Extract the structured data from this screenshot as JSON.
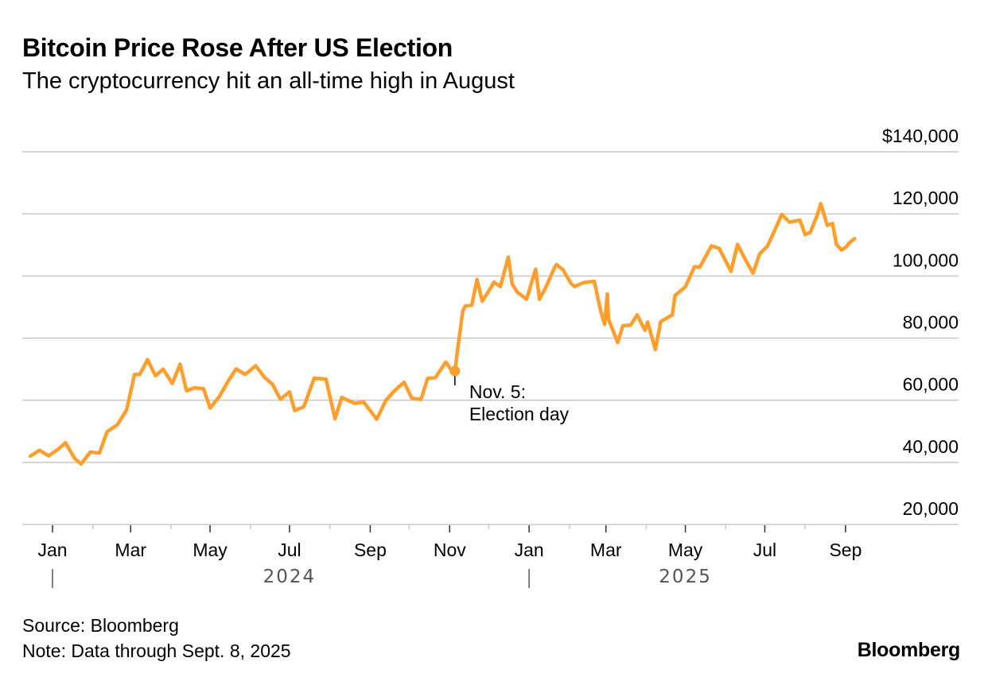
{
  "title": "Bitcoin Price Rose After US Election",
  "subtitle": "The cryptocurrency hit an all-time high in August",
  "footer": {
    "source": "Source: Bloomberg",
    "note": "Note: Data through Sept. 8, 2025",
    "logo": "Bloomberg"
  },
  "chart_data": {
    "type": "line",
    "title": "Bitcoin Price Rose After US Election",
    "subtitle": "The cryptocurrency hit an all-time high in August",
    "xlabel": "",
    "ylabel": "",
    "ylim": [
      20000,
      140000
    ],
    "xlim": [
      "2023-12-15",
      "2025-09-08"
    ],
    "y_ticks": [
      20000,
      40000,
      60000,
      80000,
      100000,
      120000,
      140000
    ],
    "y_tick_labels": [
      "20,000",
      "40,000",
      "60,000",
      "80,000",
      "100,000",
      "120,000",
      "$140,000"
    ],
    "x_ticks": [
      {
        "date": "2024-01-01",
        "label": "Jan"
      },
      {
        "date": "2024-03-01",
        "label": "Mar"
      },
      {
        "date": "2024-05-01",
        "label": "May"
      },
      {
        "date": "2024-07-01",
        "label": "Jul"
      },
      {
        "date": "2024-09-01",
        "label": "Sep"
      },
      {
        "date": "2024-11-01",
        "label": "Nov"
      },
      {
        "date": "2025-01-01",
        "label": "Jan"
      },
      {
        "date": "2025-03-01",
        "label": "Mar"
      },
      {
        "date": "2025-05-01",
        "label": "May"
      },
      {
        "date": "2025-07-01",
        "label": "Jul"
      },
      {
        "date": "2025-09-01",
        "label": "Sep"
      }
    ],
    "year_labels": [
      {
        "date": "2024-07-01",
        "label": "2024"
      },
      {
        "date": "2025-05-01",
        "label": "2025"
      }
    ],
    "grid": "horizontal",
    "line_color": "#FF9E2C",
    "annotation": {
      "date": "2024-11-05",
      "value": 69400,
      "line1": "Nov. 5:",
      "line2": "Election day"
    },
    "series": [
      {
        "points": [
          [
            "2023-12-15",
            42000
          ],
          [
            "2023-12-22",
            43900
          ],
          [
            "2023-12-29",
            42100
          ],
          [
            "2024-01-05",
            44100
          ],
          [
            "2024-01-11",
            46300
          ],
          [
            "2024-01-18",
            41300
          ],
          [
            "2024-01-23",
            39500
          ],
          [
            "2024-01-30",
            43300
          ],
          [
            "2024-02-06",
            43000
          ],
          [
            "2024-02-12",
            49900
          ],
          [
            "2024-02-20",
            52200
          ],
          [
            "2024-02-27",
            57000
          ],
          [
            "2024-03-04",
            68300
          ],
          [
            "2024-03-08",
            68300
          ],
          [
            "2024-03-14",
            73100
          ],
          [
            "2024-03-20",
            67900
          ],
          [
            "2024-03-26",
            70000
          ],
          [
            "2024-04-02",
            65400
          ],
          [
            "2024-04-08",
            71600
          ],
          [
            "2024-04-13",
            63000
          ],
          [
            "2024-04-19",
            64000
          ],
          [
            "2024-04-26",
            63700
          ],
          [
            "2024-05-01",
            57500
          ],
          [
            "2024-05-08",
            61100
          ],
          [
            "2024-05-15",
            66200
          ],
          [
            "2024-05-21",
            70100
          ],
          [
            "2024-05-28",
            68300
          ],
          [
            "2024-06-05",
            71100
          ],
          [
            "2024-06-12",
            67300
          ],
          [
            "2024-06-18",
            65100
          ],
          [
            "2024-06-24",
            60300
          ],
          [
            "2024-07-01",
            62700
          ],
          [
            "2024-07-05",
            56700
          ],
          [
            "2024-07-12",
            57900
          ],
          [
            "2024-07-20",
            67100
          ],
          [
            "2024-07-29",
            66800
          ],
          [
            "2024-08-05",
            54000
          ],
          [
            "2024-08-10",
            60900
          ],
          [
            "2024-08-20",
            59000
          ],
          [
            "2024-08-27",
            59400
          ],
          [
            "2024-09-06",
            53900
          ],
          [
            "2024-09-13",
            60000
          ],
          [
            "2024-09-20",
            63200
          ],
          [
            "2024-09-27",
            65800
          ],
          [
            "2024-10-03",
            60600
          ],
          [
            "2024-10-10",
            60300
          ],
          [
            "2024-10-15",
            67000
          ],
          [
            "2024-10-21",
            67300
          ],
          [
            "2024-10-29",
            72300
          ],
          [
            "2024-11-04",
            68700
          ],
          [
            "2024-11-05",
            69400
          ],
          [
            "2024-11-07",
            75900
          ],
          [
            "2024-11-11",
            88700
          ],
          [
            "2024-11-13",
            90400
          ],
          [
            "2024-11-18",
            90600
          ],
          [
            "2024-11-22",
            98900
          ],
          [
            "2024-11-26",
            91900
          ],
          [
            "2024-12-02",
            95800
          ],
          [
            "2024-12-05",
            98000
          ],
          [
            "2024-12-10",
            96600
          ],
          [
            "2024-12-16",
            106100
          ],
          [
            "2024-12-19",
            97400
          ],
          [
            "2024-12-23",
            94800
          ],
          [
            "2024-12-30",
            92500
          ],
          [
            "2025-01-06",
            102200
          ],
          [
            "2025-01-09",
            92500
          ],
          [
            "2025-01-14",
            96500
          ],
          [
            "2025-01-20",
            102200
          ],
          [
            "2025-01-22",
            103700
          ],
          [
            "2025-01-27",
            102000
          ],
          [
            "2025-02-02",
            97700
          ],
          [
            "2025-02-05",
            96600
          ],
          [
            "2025-02-12",
            97900
          ],
          [
            "2025-02-20",
            98300
          ],
          [
            "2025-02-25",
            88700
          ],
          [
            "2025-02-28",
            84400
          ],
          [
            "2025-03-02",
            94200
          ],
          [
            "2025-03-03",
            86100
          ],
          [
            "2025-03-10",
            78600
          ],
          [
            "2025-03-14",
            84000
          ],
          [
            "2025-03-20",
            84200
          ],
          [
            "2025-03-25",
            87500
          ],
          [
            "2025-03-31",
            82500
          ],
          [
            "2025-04-02",
            85200
          ],
          [
            "2025-04-08",
            76300
          ],
          [
            "2025-04-12",
            85300
          ],
          [
            "2025-04-21",
            87500
          ],
          [
            "2025-04-23",
            93700
          ],
          [
            "2025-05-01",
            96500
          ],
          [
            "2025-05-08",
            103000
          ],
          [
            "2025-05-12",
            102800
          ],
          [
            "2025-05-21",
            109700
          ],
          [
            "2025-05-27",
            108900
          ],
          [
            "2025-06-05",
            101500
          ],
          [
            "2025-06-10",
            110200
          ],
          [
            "2025-06-17",
            104600
          ],
          [
            "2025-06-22",
            100900
          ],
          [
            "2025-06-27",
            107100
          ],
          [
            "2025-07-03",
            109600
          ],
          [
            "2025-07-10",
            116000
          ],
          [
            "2025-07-14",
            119800
          ],
          [
            "2025-07-20",
            117300
          ],
          [
            "2025-07-28",
            118000
          ],
          [
            "2025-08-01",
            113300
          ],
          [
            "2025-08-05",
            114100
          ],
          [
            "2025-08-10",
            119300
          ],
          [
            "2025-08-13",
            123300
          ],
          [
            "2025-08-18",
            116300
          ],
          [
            "2025-08-22",
            116900
          ],
          [
            "2025-08-25",
            110200
          ],
          [
            "2025-08-29",
            108400
          ],
          [
            "2025-09-01",
            109200
          ],
          [
            "2025-09-04",
            110700
          ],
          [
            "2025-09-08",
            112000
          ]
        ]
      }
    ]
  }
}
